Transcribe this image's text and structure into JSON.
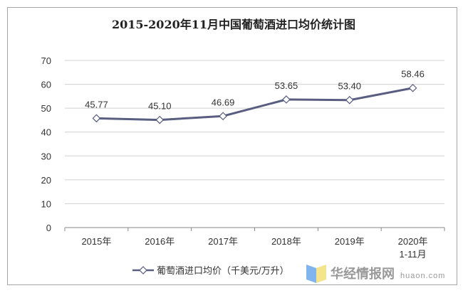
{
  "chart_data": {
    "type": "line",
    "title": "2015-2020年11月中国葡萄酒进口均价统计图",
    "categories": [
      "2015年",
      "2016年",
      "2017年",
      "2018年",
      "2019年",
      "2020年\n1-11月"
    ],
    "series": [
      {
        "name": "葡萄酒进口均价（千美元/万升）",
        "values": [
          45.77,
          45.1,
          46.69,
          53.65,
          53.4,
          58.46
        ],
        "color": "#595d80"
      }
    ],
    "data_labels": [
      "45.77",
      "45.10",
      "46.69",
      "53.65",
      "53.40",
      "58.46"
    ],
    "ylim": [
      0,
      70
    ],
    "yticks": [
      0,
      10,
      20,
      30,
      40,
      50,
      60,
      70
    ],
    "grid": true,
    "legend": "bottom",
    "marker": "open-diamond"
  },
  "watermark": {
    "name": "华经情报网",
    "url": "huaon.com"
  }
}
